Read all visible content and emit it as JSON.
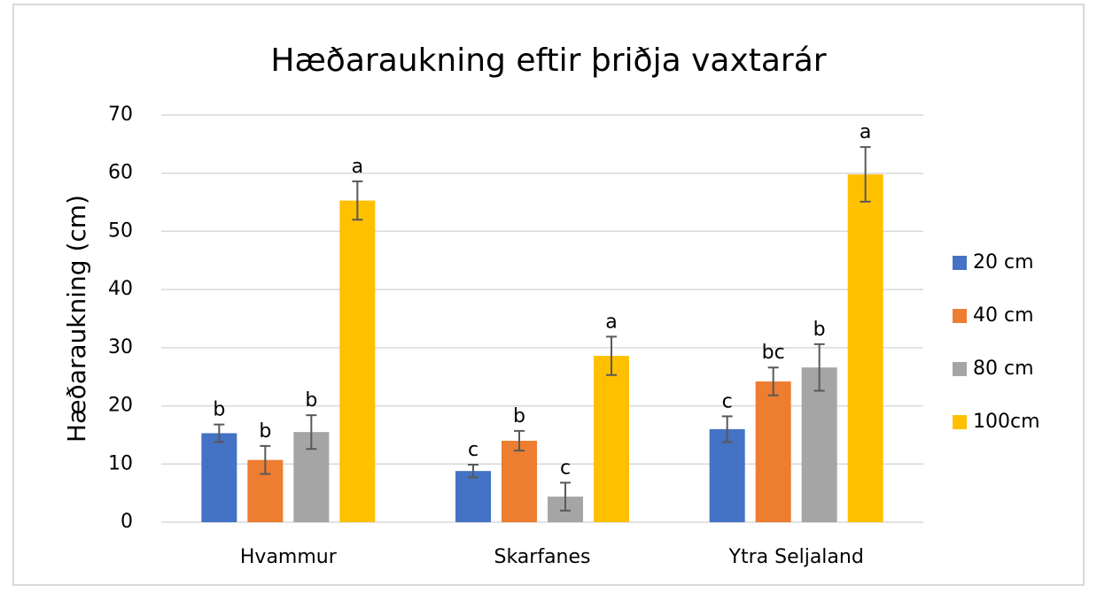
{
  "chart_data": {
    "type": "bar",
    "title": "Hæðaraukning eftir þriðja vaxtarár",
    "ylabel": "Hæðaraukning (cm)",
    "categories": [
      "Hvammur",
      "Skarfanes",
      "Ytra Seljaland"
    ],
    "series": [
      {
        "name": "20 cm",
        "color": "#4472c4",
        "values": [
          15.3,
          8.8,
          16.0
        ],
        "errors": [
          1.5,
          1.1,
          2.2
        ],
        "letters": [
          "b",
          "c",
          "c"
        ]
      },
      {
        "name": "40 cm",
        "color": "#ed7d31",
        "values": [
          10.7,
          14.0,
          24.2
        ],
        "errors": [
          2.4,
          1.7,
          2.4
        ],
        "letters": [
          "b",
          "b",
          "bc"
        ]
      },
      {
        "name": "80 cm",
        "color": "#a5a5a5",
        "values": [
          15.5,
          4.4,
          26.6
        ],
        "errors": [
          2.9,
          2.4,
          4.0
        ],
        "letters": [
          "b",
          "c",
          "b"
        ]
      },
      {
        "name": "100cm",
        "color": "#ffc000",
        "values": [
          55.3,
          28.6,
          59.8
        ],
        "errors": [
          3.3,
          3.3,
          4.7
        ],
        "letters": [
          "a",
          "a",
          "a"
        ]
      }
    ],
    "ylim": [
      0,
      70
    ],
    "yticks": [
      0,
      10,
      20,
      30,
      40,
      50,
      60,
      70
    ],
    "grid": true,
    "legend": "right"
  }
}
